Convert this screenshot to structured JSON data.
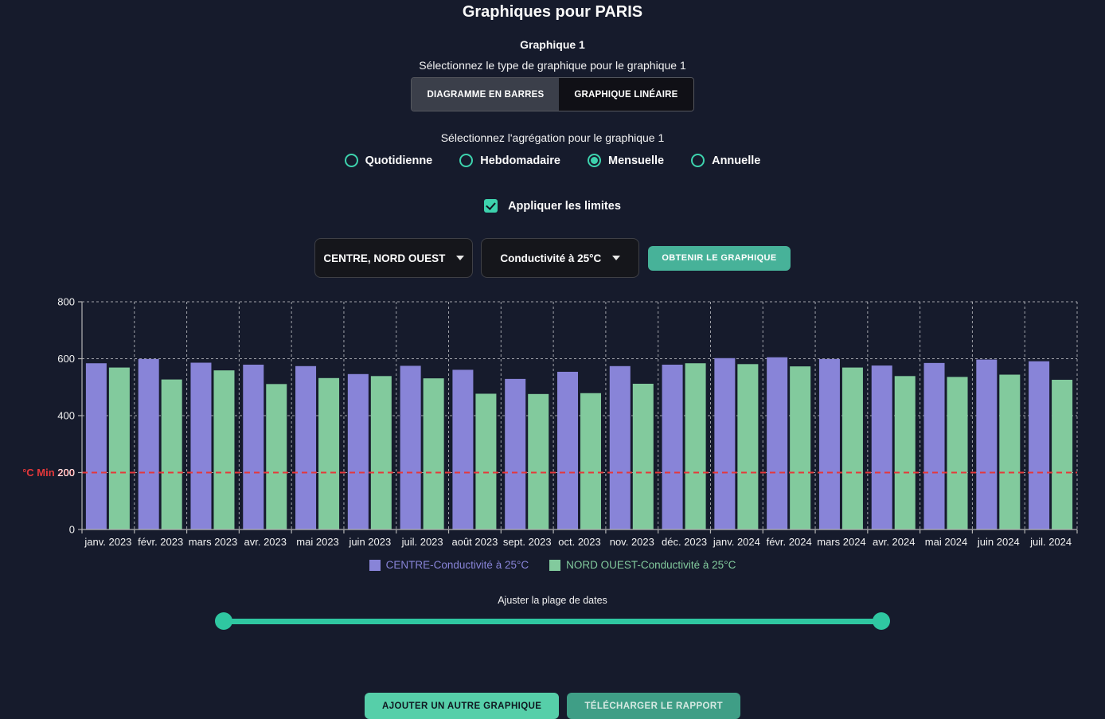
{
  "header": {
    "title": "Graphiques pour PARIS",
    "subtitle": "Graphique 1"
  },
  "chart_type": {
    "label": "Sélectionnez le type de graphique pour le graphique 1",
    "options": [
      "DIAGRAMME EN BARRES",
      "GRAPHIQUE LINÉAIRE"
    ],
    "selected": "DIAGRAMME EN BARRES"
  },
  "aggregation": {
    "label": "Sélectionnez l'agrégation pour le graphique 1",
    "options": [
      "Quotidienne",
      "Hebdomadaire",
      "Mensuelle",
      "Annuelle"
    ],
    "selected": "Mensuelle"
  },
  "limits": {
    "label": "Appliquer les limites",
    "checked": true
  },
  "filters": {
    "zone_value": "CENTRE, NORD OUEST",
    "parameter_value": "Conductivité à 25°C",
    "get_chart_label": "OBTENIR LE GRAPHIQUE"
  },
  "chart_data": {
    "type": "bar",
    "categories": [
      "janv. 2023",
      "févr. 2023",
      "mars 2023",
      "avr. 2023",
      "mai 2023",
      "juin 2023",
      "juil. 2023",
      "août 2023",
      "sept. 2023",
      "oct. 2023",
      "nov. 2023",
      "déc. 2023",
      "janv. 2024",
      "févr. 2024",
      "mars 2024",
      "avr. 2024",
      "mai 2024",
      "juin 2024",
      "juil. 2024"
    ],
    "series": [
      {
        "name": "CENTRE-Conductivité à 25°C",
        "color": "#8884d8",
        "values": [
          584,
          599,
          586,
          579,
          574,
          546,
          575,
          561,
          529,
          554,
          574,
          579,
          602,
          605,
          599,
          576,
          585,
          597,
          591
        ]
      },
      {
        "name": "NORD OUEST-Conductivité à 25°C",
        "color": "#82ca9d",
        "values": [
          569,
          527,
          559,
          511,
          532,
          539,
          531,
          477,
          476,
          479,
          512,
          584,
          581,
          573,
          569,
          539,
          536,
          544,
          526
        ]
      }
    ],
    "ylim": [
      0,
      800
    ],
    "yticks": [
      0,
      200,
      400,
      600,
      800
    ],
    "min_line": {
      "value": 200,
      "label": "°C Min",
      "color": "#e5383b"
    },
    "grid": true,
    "legend_position": "bottom"
  },
  "date_slider": {
    "label": "Ajuster la plage de dates"
  },
  "footer": {
    "add_button": "AJOUTER UN AUTRE GRAPHIQUE",
    "download_button": "TÉLÉCHARGER LE RAPPORT"
  },
  "colors": {
    "background": "#161b2c",
    "accent_teal": "#3dd2ad",
    "slider_teal": "#2fc7a1",
    "bar_centre": "#8884d8",
    "bar_nord_ouest": "#82ca9d",
    "min_line_red": "#e5383b"
  }
}
